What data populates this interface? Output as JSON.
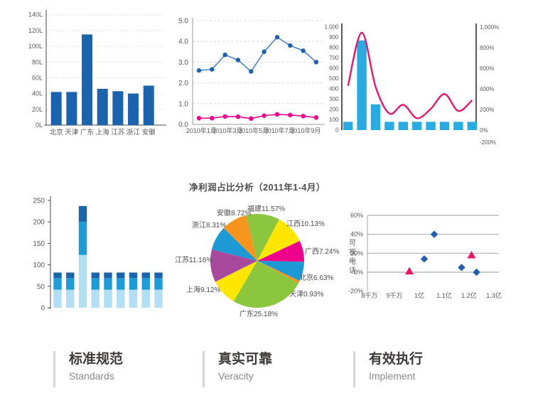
{
  "pie_title": "净利润占比分析（2011年1-4月）",
  "features": [
    {
      "title_zh": "标准规范",
      "title_en": "Standards"
    },
    {
      "title_zh": "真实可靠",
      "title_en": "Veracity"
    },
    {
      "title_zh": "有效执行",
      "title_en": "Implement"
    }
  ],
  "colors": {
    "dark_blue": "#1B63AC",
    "cyan": "#29ABE2",
    "pale_blue": "#B3DFF5",
    "mid_blue": "#1E9CD7",
    "pink": "#EC008C",
    "crimson": "#E8156E",
    "axis_dark": "#4A4A4A",
    "axis_gray": "#9B9B9B"
  },
  "chart_data": [
    {
      "id": "region-bar",
      "type": "bar",
      "categories": [
        "北京",
        "天津",
        "广东",
        "上海",
        "江苏",
        "浙江",
        "安徽"
      ],
      "values": [
        42,
        42,
        115,
        46,
        43,
        40,
        50
      ],
      "y_ticks": [
        "0L",
        "20L",
        "40L",
        "60L",
        "80L",
        "100L",
        "120L",
        "140L"
      ],
      "ylim": [
        0,
        140
      ],
      "bar_color": "#1B63AC",
      "grid": "dotted"
    },
    {
      "id": "monthly-line",
      "type": "line",
      "x_labels": [
        "2010年1月",
        "2010年3月",
        "2010年5月",
        "2010年7月",
        "2010年9月"
      ],
      "n_points": 10,
      "y_ticks": [
        "0.0",
        "1.0",
        "2.0",
        "3.0",
        "4.0",
        "5.0"
      ],
      "ylim": [
        0,
        5
      ],
      "series": [
        {
          "name": "series-blue",
          "color": "#4C86C6",
          "point_color": "#1B63AC",
          "values": [
            2.6,
            2.65,
            3.35,
            3.1,
            2.55,
            3.5,
            4.2,
            3.8,
            3.55,
            3.0
          ]
        },
        {
          "name": "series-pink",
          "color": "#EC008C",
          "values": [
            0.3,
            0.3,
            0.38,
            0.37,
            0.28,
            0.42,
            0.48,
            0.45,
            0.4,
            0.33
          ]
        }
      ]
    },
    {
      "id": "combo-bar-curve",
      "type": "bar+line",
      "bar_values": [
        80,
        870,
        250,
        80,
        80,
        80,
        80,
        80,
        80,
        80
      ],
      "line_values": [
        430,
        945,
        420,
        160,
        245,
        115,
        205,
        350,
        185,
        290
      ],
      "left_ticks": [
        "0",
        "100",
        "200",
        "300",
        "400",
        "500",
        "600",
        "700",
        "800",
        "900",
        "1,000"
      ],
      "right_ticks": [
        "-200%",
        "0%",
        "200%",
        "400%",
        "600%",
        "800%",
        "1,000%"
      ],
      "left_ylim": [
        0,
        1000
      ],
      "bar_color": "#29ABE2",
      "line_color": "#E8156E"
    },
    {
      "id": "stacked-bar",
      "type": "bar",
      "bars": [
        [
          42,
          27,
          13
        ],
        [
          42,
          27,
          13
        ],
        [
          123,
          77,
          37
        ],
        [
          42,
          27,
          13
        ],
        [
          42,
          27,
          13
        ],
        [
          42,
          27,
          13
        ],
        [
          42,
          27,
          13
        ],
        [
          42,
          27,
          13
        ],
        [
          42,
          27,
          13
        ]
      ],
      "y_ticks": [
        "0",
        "50",
        "100",
        "150",
        "200",
        "250"
      ],
      "ylim": [
        0,
        250
      ],
      "colors": [
        "#B3DFF5",
        "#1E9CD7",
        "#1B63AC"
      ]
    },
    {
      "id": "profit-pie",
      "type": "pie",
      "title": "净利润占比分析（2011年1-4月）",
      "slices": [
        {
          "label": "福建11.57%",
          "value": 11.57,
          "color": "#8CC63F"
        },
        {
          "label": "江西10.13%",
          "value": 10.13,
          "color": "#FFE600"
        },
        {
          "label": "广西7.24%",
          "value": 7.24,
          "color": "#EC008C"
        },
        {
          "label": "北京6.63%",
          "value": 6.63,
          "color": "#1C9AD6"
        },
        {
          "label": "天津0.93%",
          "value": 0.93,
          "color": "#F7941D"
        },
        {
          "label": "广东25.18%",
          "value": 25.18,
          "color": "#8CC63F"
        },
        {
          "label": "上海9.12%",
          "value": 9.12,
          "color": "#FFE600"
        },
        {
          "label": "江苏11.16%",
          "value": 11.16,
          "color": "#A9499D"
        },
        {
          "label": "浙江8.31%",
          "value": 8.31,
          "color": "#1C9AD6"
        },
        {
          "label": "安徽8.72%",
          "value": 8.72,
          "color": "#F7941D"
        }
      ]
    },
    {
      "id": "scatter",
      "type": "scatter",
      "ylabel": "可视电话",
      "x_ticks": [
        "8千万",
        "9千万",
        "1亿",
        "1.1亿",
        "1.2亿",
        "1.3亿"
      ],
      "y_ticks": [
        "-20%",
        "0%",
        "20%",
        "40%",
        "60%"
      ],
      "xlim": [
        0.8,
        1.3
      ],
      "ylim": [
        -20,
        60
      ],
      "series": [
        {
          "name": "diamond-series",
          "marker": "diamond",
          "color": "#1F5FAE",
          "points": [
            [
              1.02,
              14
            ],
            [
              1.06,
              40
            ],
            [
              1.17,
              5
            ],
            [
              1.23,
              0
            ]
          ]
        },
        {
          "name": "triangle-series",
          "marker": "triangle",
          "color": "#ED1567",
          "points": [
            [
              0.96,
              1
            ],
            [
              1.21,
              18
            ]
          ]
        }
      ]
    }
  ]
}
